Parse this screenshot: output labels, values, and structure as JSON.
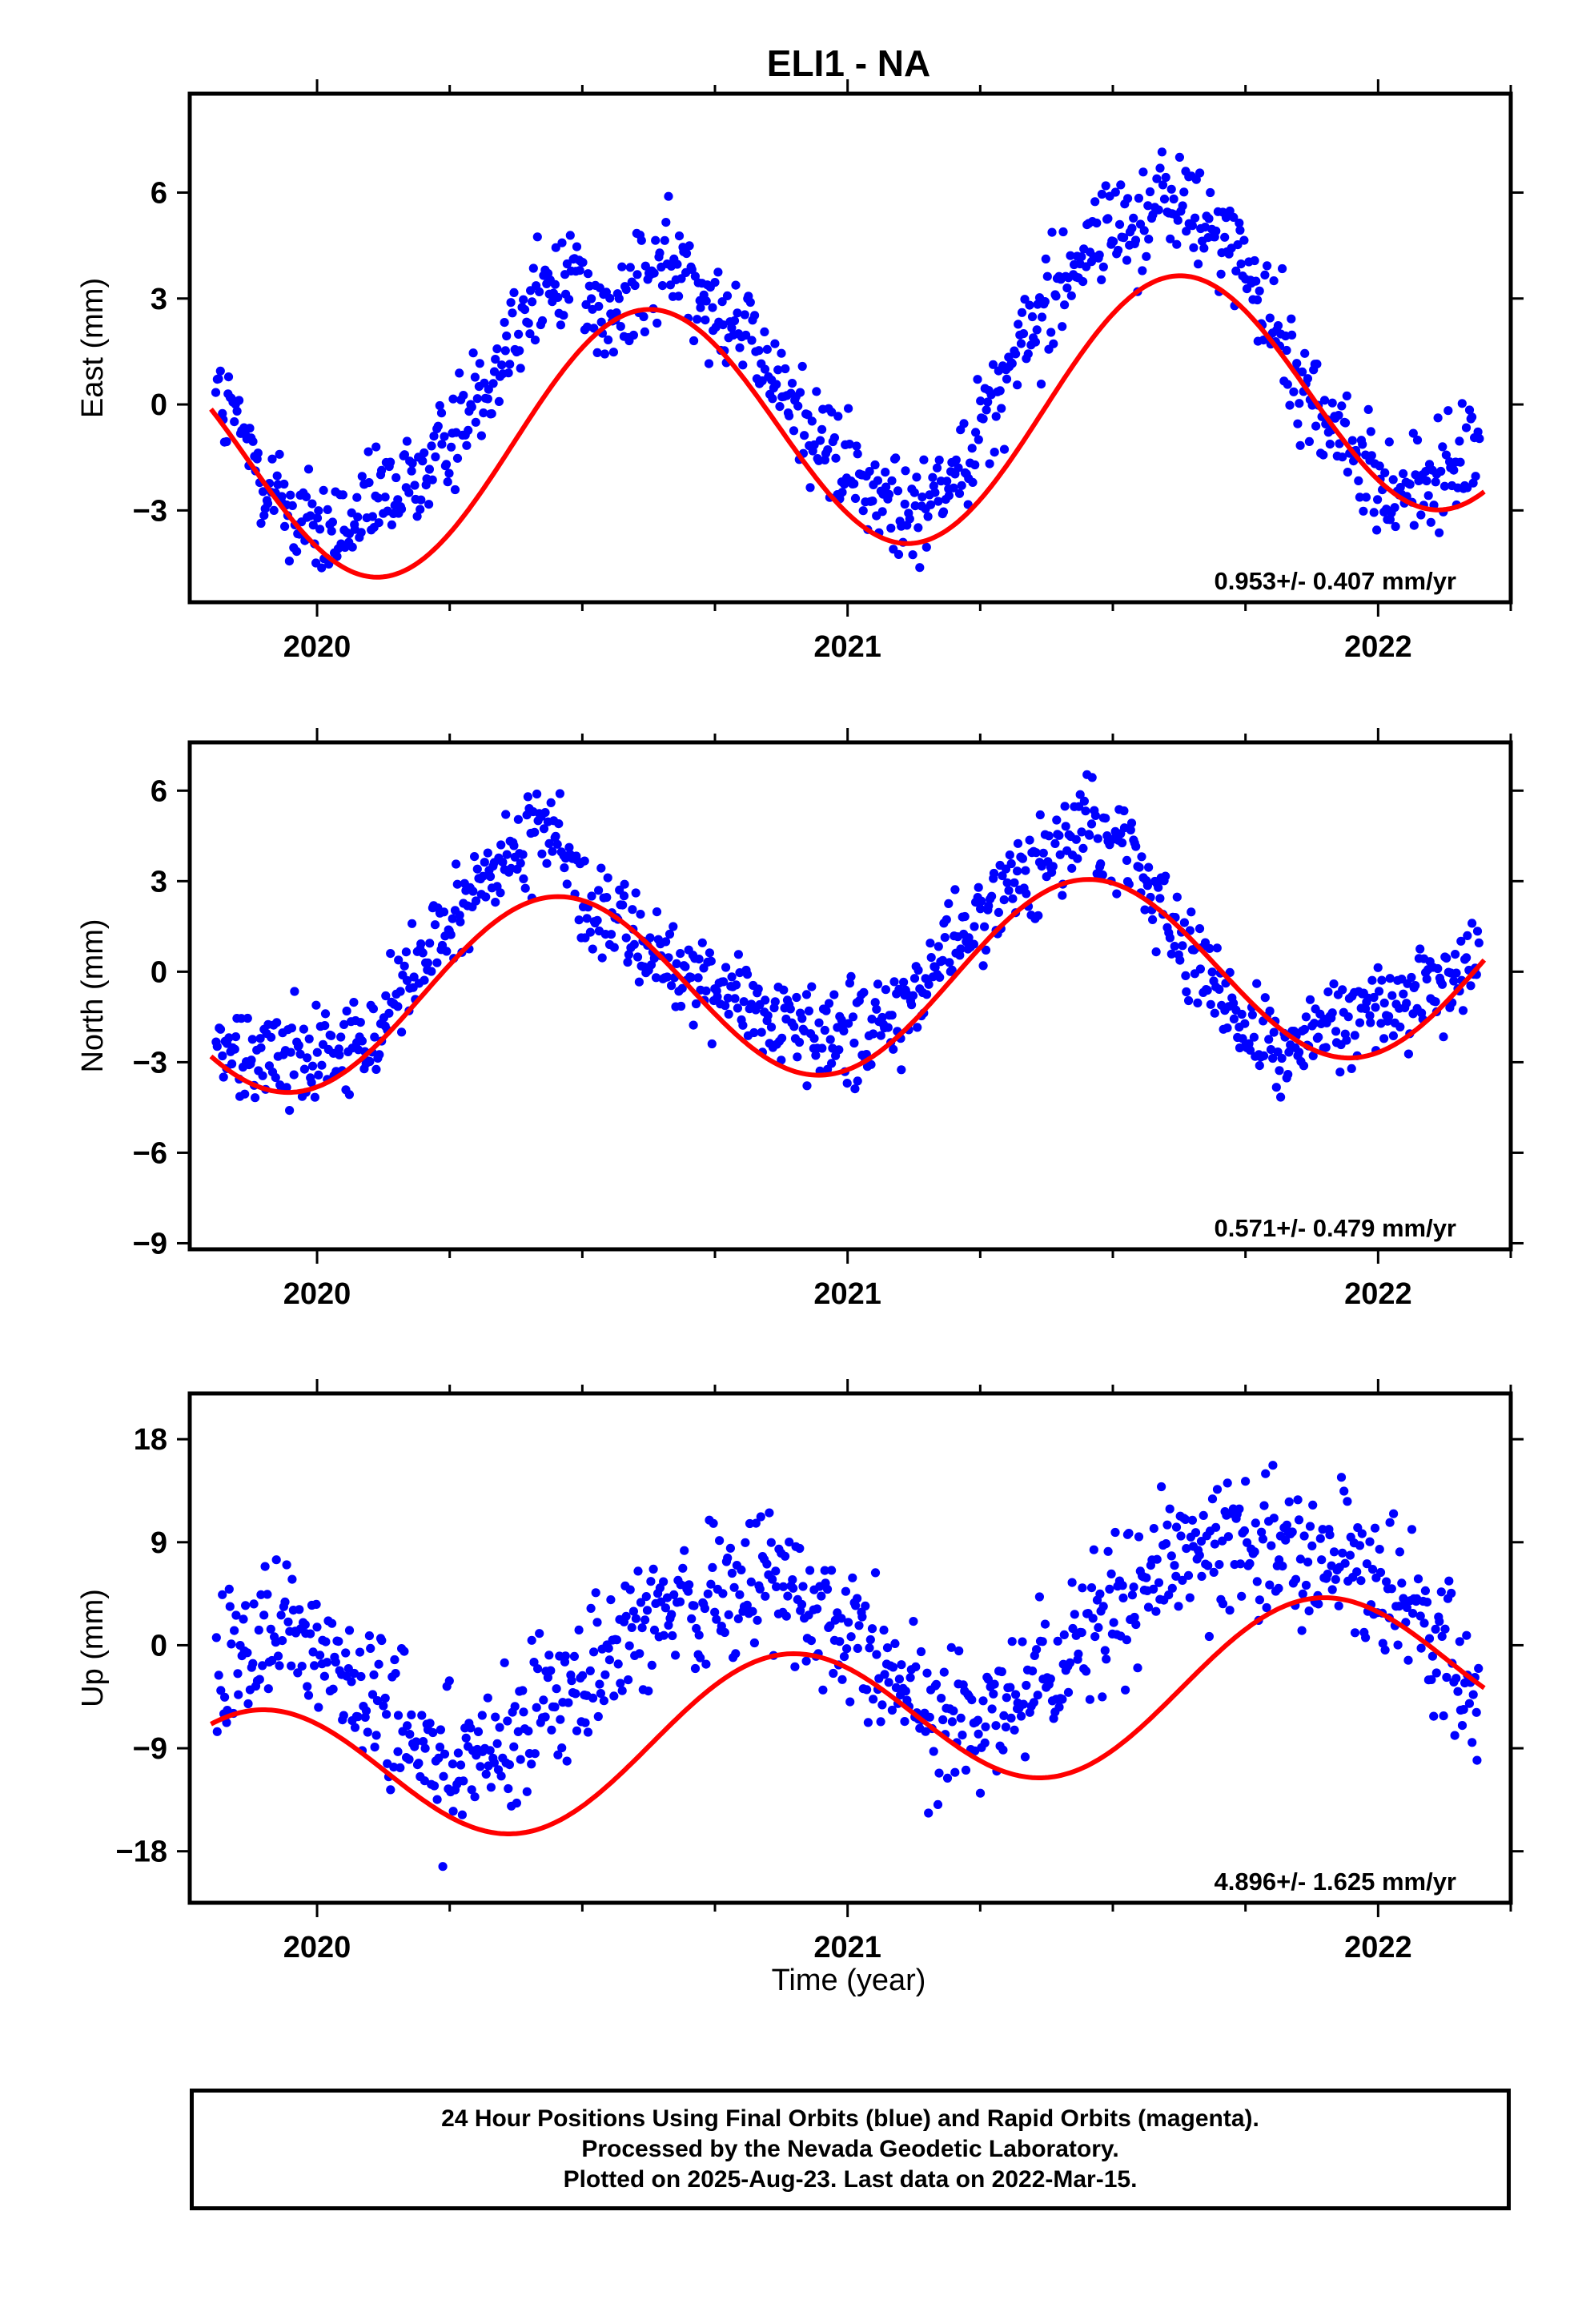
{
  "chart_data": [
    {
      "type": "scatter",
      "title": "ELI1 - NA",
      "ylabel": "East (mm)",
      "xlabel": "",
      "xlim": [
        2019.76,
        2022.25
      ],
      "ylim": [
        -5.6,
        8.8
      ],
      "yticks": [
        6,
        3,
        0,
        -3
      ],
      "xticks": [
        2020,
        2021,
        2022
      ],
      "grid": false,
      "annotation": "0.953+/- 0.407 mm/yr",
      "fit": {
        "t0": 2019.8,
        "t1": 2022.2,
        "trend": 0.953,
        "offset": -0.5,
        "annual_amp": 3.55,
        "annual_peak": 0.62
      },
      "series": [
        {
          "values_desc": "daily positions",
          "color": "#0000ff",
          "x": [
            2019.81,
            2019.85,
            2019.9,
            2019.95,
            2020.0,
            2020.05,
            2020.1,
            2020.15,
            2020.2,
            2020.25,
            2020.3,
            2020.35,
            2020.4,
            2020.45,
            2020.5,
            2020.55,
            2020.6,
            2020.65,
            2020.7,
            2020.75,
            2020.8,
            2020.85,
            2020.9,
            2020.95,
            2021.0,
            2021.05,
            2021.1,
            2021.15,
            2021.2,
            2021.25,
            2021.3,
            2021.35,
            2021.4,
            2021.45,
            2021.5,
            2021.55,
            2021.6,
            2021.65,
            2021.7,
            2021.75,
            2021.8,
            2021.85,
            2021.9,
            2021.95,
            2022.0,
            2022.05,
            2022.1,
            2022.15,
            2022.19
          ],
          "y": [
            0.2,
            -0.8,
            -2.0,
            -3.1,
            -3.6,
            -3.7,
            -3.0,
            -2.4,
            -2.0,
            -1.0,
            0.3,
            1.6,
            2.8,
            3.5,
            3.9,
            2.0,
            3.2,
            3.9,
            3.8,
            3.0,
            2.1,
            1.0,
            0.0,
            -1.0,
            -1.9,
            -2.6,
            -3.1,
            -2.8,
            -1.8,
            -0.6,
            0.8,
            2.2,
            3.5,
            4.4,
            5.0,
            5.2,
            5.8,
            5.4,
            4.8,
            3.8,
            2.3,
            0.9,
            -0.5,
            -1.4,
            -2.2,
            -2.4,
            -2.3,
            -1.8,
            -1.2
          ],
          "spread": 1.1,
          "count": 900
        }
      ]
    },
    {
      "type": "scatter",
      "title": "",
      "ylabel": "North (mm)",
      "xlabel": "",
      "xlim": [
        2019.76,
        2022.25
      ],
      "ylim": [
        -9.2,
        7.6
      ],
      "yticks": [
        6,
        3,
        0,
        -3,
        -6,
        -9
      ],
      "xticks": [
        2020,
        2021,
        2022
      ],
      "grid": false,
      "annotation": "0.571+/- 0.479 mm/yr",
      "fit": {
        "t0": 2019.8,
        "t1": 2022.2,
        "trend": 0.571,
        "offset": -0.3,
        "annual_amp": 3.1,
        "annual_peak": 0.45
      },
      "series": [
        {
          "values_desc": "daily positions",
          "color": "#0000ff",
          "x": [
            2019.81,
            2019.85,
            2019.9,
            2019.95,
            2020.0,
            2020.05,
            2020.1,
            2020.15,
            2020.2,
            2020.25,
            2020.3,
            2020.35,
            2020.4,
            2020.45,
            2020.5,
            2020.55,
            2020.6,
            2020.65,
            2020.7,
            2020.75,
            2020.8,
            2020.85,
            2020.9,
            2020.95,
            2021.0,
            2021.05,
            2021.1,
            2021.15,
            2021.2,
            2021.25,
            2021.3,
            2021.35,
            2021.4,
            2021.45,
            2021.5,
            2021.55,
            2021.6,
            2021.65,
            2021.7,
            2021.75,
            2021.8,
            2021.85,
            2021.9,
            2021.95,
            2022.0,
            2022.05,
            2022.1,
            2022.15,
            2022.19
          ],
          "y": [
            -2.6,
            -2.8,
            -2.8,
            -2.6,
            -2.4,
            -2.7,
            -2.1,
            -0.9,
            0.3,
            1.6,
            2.7,
            3.5,
            4.2,
            4.6,
            2.1,
            1.8,
            1.0,
            0.4,
            0.0,
            -0.6,
            -1.1,
            -1.5,
            -2.1,
            -2.2,
            -2.1,
            -1.8,
            -1.4,
            -0.5,
            0.7,
            1.8,
            2.8,
            3.6,
            4.2,
            4.6,
            4.8,
            3.3,
            2.0,
            0.6,
            -0.8,
            -1.6,
            -2.3,
            -2.5,
            -2.2,
            -1.5,
            -1.2,
            -1.0,
            -0.6,
            -0.1,
            0.6
          ],
          "spread": 1.1,
          "count": 900
        }
      ]
    },
    {
      "type": "scatter",
      "title": "",
      "ylabel": "Up (mm)",
      "xlabel": "Time (year)",
      "xlim": [
        2019.76,
        2022.25
      ],
      "ylim": [
        -22.5,
        22.0
      ],
      "yticks": [
        18,
        9,
        0,
        -9,
        -18
      ],
      "xticks": [
        2020,
        2021,
        2022
      ],
      "grid": false,
      "annotation": "4.896+/- 1.625 mm/yr",
      "fit": {
        "t0": 2019.8,
        "t1": 2022.2,
        "trend": 4.896,
        "offset": -6.8,
        "annual_amp": 6.6,
        "annual_peak": 0.88
      },
      "series": [
        {
          "values_desc": "daily positions",
          "color": "#0000ff",
          "x": [
            2019.81,
            2019.85,
            2019.9,
            2019.95,
            2020.0,
            2020.05,
            2020.1,
            2020.15,
            2020.2,
            2020.25,
            2020.3,
            2020.35,
            2020.4,
            2020.45,
            2020.5,
            2020.55,
            2020.6,
            2020.65,
            2020.7,
            2020.75,
            2020.8,
            2020.85,
            2020.9,
            2020.95,
            2021.0,
            2021.05,
            2021.1,
            2021.15,
            2021.2,
            2021.25,
            2021.3,
            2021.35,
            2021.4,
            2021.45,
            2021.5,
            2021.55,
            2021.6,
            2021.65,
            2021.7,
            2021.75,
            2021.8,
            2021.85,
            2021.9,
            2021.95,
            2022.0,
            2022.05,
            2022.1,
            2022.15,
            2022.19
          ],
          "y": [
            -1.0,
            0.5,
            1.5,
            1.0,
            0.0,
            -2.5,
            -5.0,
            -8.0,
            -9.5,
            -10.5,
            -10.0,
            -8.5,
            -6.5,
            -4.5,
            -2.5,
            -1.0,
            1.0,
            3.0,
            4.0,
            4.5,
            4.5,
            5.0,
            5.0,
            3.0,
            1.0,
            -1.5,
            -4.0,
            -5.5,
            -6.5,
            -7.0,
            -6.0,
            -4.0,
            -2.0,
            0.5,
            3.0,
            5.5,
            7.5,
            8.5,
            9.5,
            9.0,
            8.5,
            9.0,
            8.5,
            7.5,
            6.0,
            3.5,
            0.5,
            -2.5,
            -4.0
          ],
          "spread": 4.5,
          "count": 900
        }
      ]
    }
  ],
  "footer": {
    "line1": "24 Hour Positions Using Final Orbits (blue) and Rapid Orbits (magenta).",
    "line2": "Processed by the Nevada Geodetic Laboratory.",
    "line3": "Plotted on 2025-Aug-23. Last data on 2022-Mar-15."
  },
  "colors": {
    "points": "#0000ff",
    "fit": "#ff0000",
    "frame": "#000000"
  }
}
